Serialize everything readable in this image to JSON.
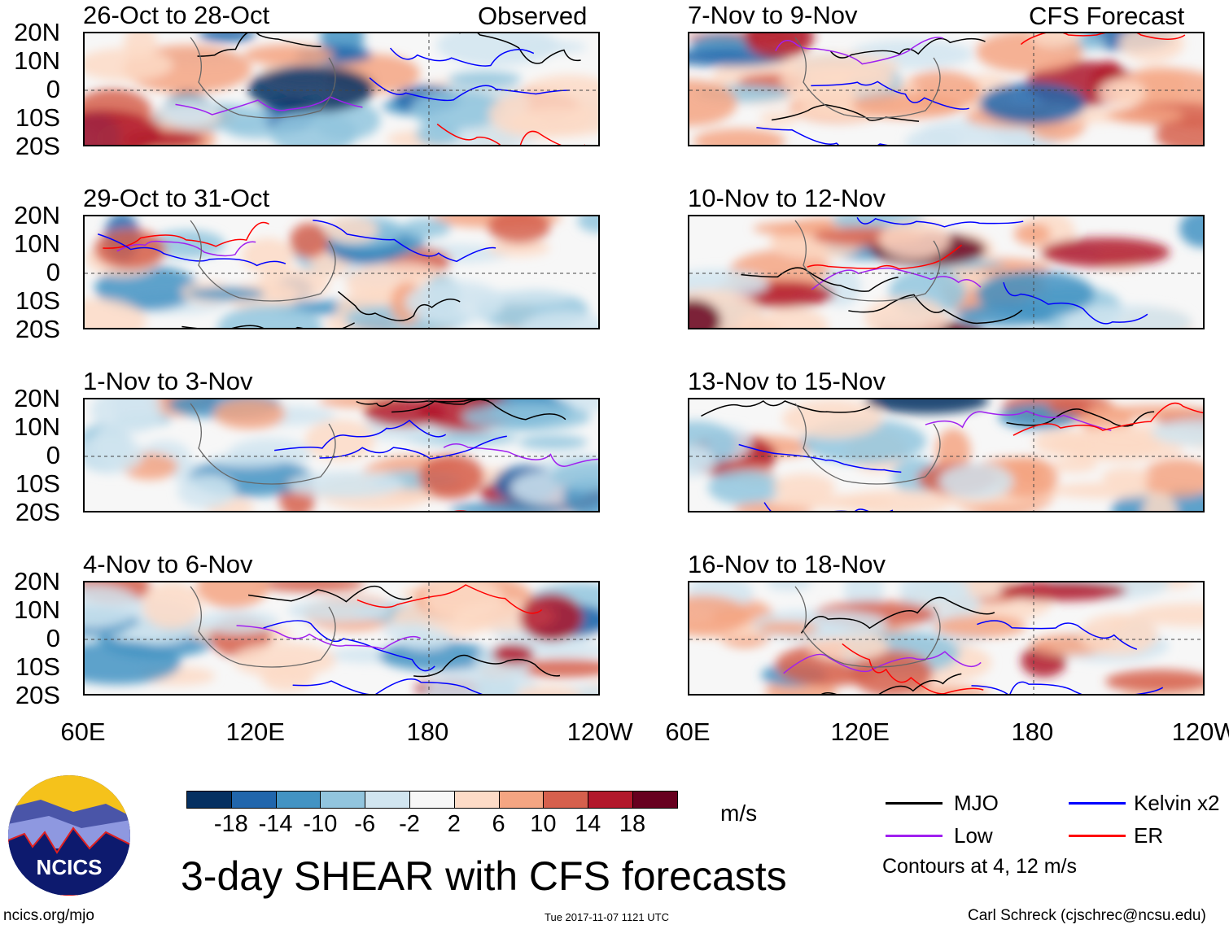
{
  "labels": {
    "observed": "Observed",
    "forecast": "CFS Forecast"
  },
  "panels": {
    "left": [
      "26-Oct to 28-Oct",
      "29-Oct to 31-Oct",
      "1-Nov to 3-Nov",
      "4-Nov to 6-Nov"
    ],
    "right": [
      "7-Nov to 9-Nov",
      "10-Nov to 12-Nov",
      "13-Nov to 15-Nov",
      "16-Nov to 18-Nov"
    ]
  },
  "lat_labels": [
    "20N",
    "10N",
    "0",
    "10S",
    "20S"
  ],
  "lon_labels": [
    "60E",
    "120E",
    "180",
    "120W"
  ],
  "colorbar": {
    "colors": [
      "#053061",
      "#2166ac",
      "#4393c3",
      "#92c5de",
      "#d1e5f0",
      "#f7f7f7",
      "#fddbc7",
      "#f4a582",
      "#d6604d",
      "#b2182b",
      "#67001f"
    ],
    "ticks": [
      "-18",
      "-14",
      "-10",
      "-6",
      "-2",
      "2",
      "6",
      "10",
      "14",
      "18"
    ],
    "units": "m/s"
  },
  "legend": {
    "items": [
      {
        "label": "MJO",
        "color": "#000000"
      },
      {
        "label": "Kelvin x2",
        "color": "#0000ff"
      },
      {
        "label": "Low",
        "color": "#a020f0"
      },
      {
        "label": "ER",
        "color": "#ff0000"
      }
    ],
    "note": "Contours at 4, 12 m/s"
  },
  "title": "3-day SHEAR with CFS forecasts",
  "logo_text": "NCICS",
  "footer": {
    "url": "ncics.org/mjo",
    "timestamp": "Tue 2017-11-07 1121 UTC",
    "credit": "Carl Schreck (cjschrec@ncsu.edu)"
  }
}
